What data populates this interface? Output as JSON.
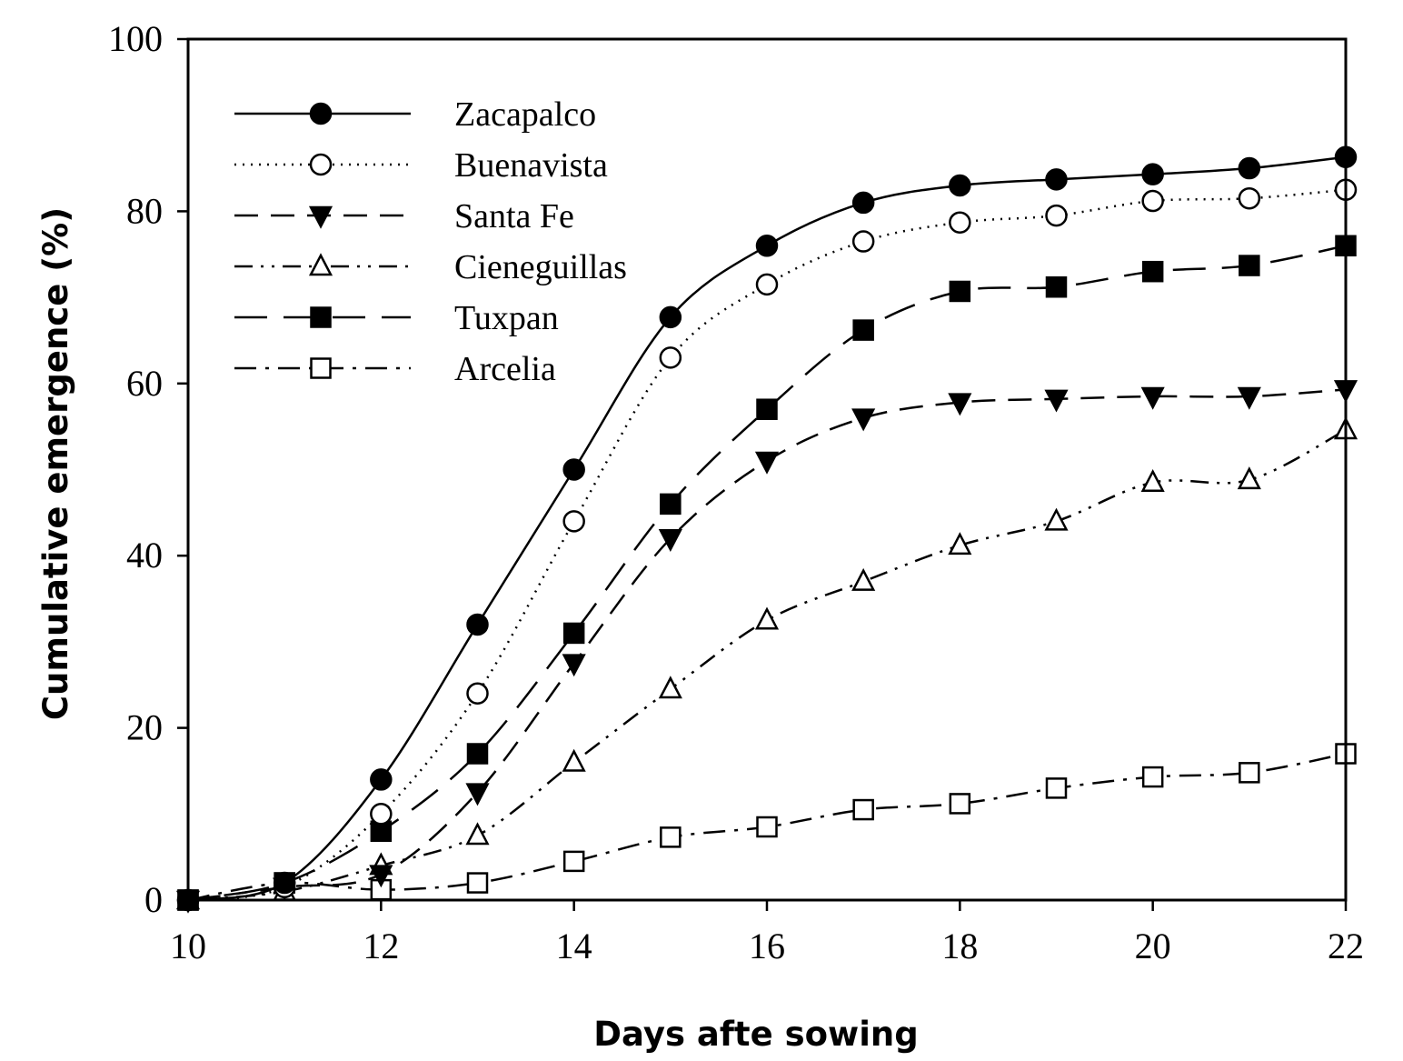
{
  "chart_data": {
    "type": "line",
    "title": "",
    "xlabel": "Days afte sowing",
    "ylabel": "Cumulative emergence (%)",
    "xlim": [
      10,
      22
    ],
    "ylim": [
      0,
      100
    ],
    "xticks": [
      10,
      12,
      14,
      16,
      18,
      20,
      22
    ],
    "yticks": [
      0,
      20,
      40,
      60,
      80,
      100
    ],
    "legend_position": "top-left",
    "x": [
      10,
      11,
      12,
      13,
      14,
      15,
      16,
      17,
      18,
      19,
      20,
      21,
      22
    ],
    "series": [
      {
        "name": "Zacapalco",
        "marker": "circle",
        "filled": true,
        "dash": "solid",
        "values": [
          0,
          2,
          14,
          32,
          50,
          67.7,
          76,
          81,
          83,
          83.7,
          84.3,
          85,
          86.3
        ]
      },
      {
        "name": "Buenavista",
        "marker": "circle",
        "filled": false,
        "dash": "dotted",
        "values": [
          0,
          1.5,
          10,
          24,
          44,
          63,
          71.5,
          76.5,
          78.7,
          79.5,
          81.2,
          81.5,
          82.5
        ]
      },
      {
        "name": "Santa Fe",
        "marker": "triangle-down",
        "filled": true,
        "dash": "dashed",
        "values": [
          0,
          1.5,
          3,
          12.5,
          27.5,
          42,
          51,
          56,
          57.8,
          58.2,
          58.5,
          58.5,
          59.3
        ]
      },
      {
        "name": "Cieneguillas",
        "marker": "triangle-up",
        "filled": false,
        "dash": "dash-dot-dot",
        "values": [
          0,
          1,
          4,
          7.5,
          16,
          24.5,
          32.5,
          37,
          41.2,
          44,
          48.5,
          48.8,
          54.6
        ]
      },
      {
        "name": "Tuxpan",
        "marker": "square",
        "filled": true,
        "dash": "long-dash",
        "values": [
          0,
          2,
          8,
          17,
          31,
          46,
          57,
          66.2,
          70.7,
          71.2,
          73,
          73.7,
          76
        ]
      },
      {
        "name": "Arcelia",
        "marker": "square",
        "filled": false,
        "dash": "dash-dot",
        "values": [
          0,
          2,
          1.2,
          2,
          4.5,
          7.3,
          8.5,
          10.5,
          11.2,
          13,
          14.3,
          14.8,
          17
        ]
      }
    ]
  }
}
